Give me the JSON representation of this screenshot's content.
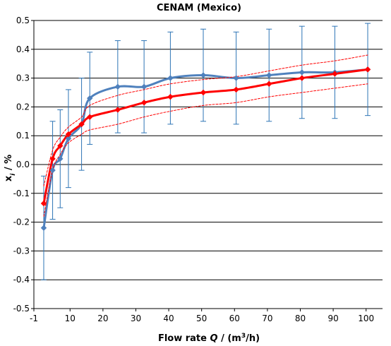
{
  "chart_data": {
    "type": "line",
    "title": "CENAM (Mexico)",
    "xlabel": {
      "prefix": "Flow rate ",
      "var": "Q",
      "suffix": " / (m",
      "sup": "3",
      "end": "/h)"
    },
    "ylabel": {
      "var": "x",
      "sub": "i",
      "suffix": " / %"
    },
    "xlim": [
      -1,
      105
    ],
    "ylim": [
      -0.5,
      0.5
    ],
    "x_ticks": [
      -1,
      10,
      20,
      30,
      40,
      50,
      60,
      70,
      80,
      90,
      100
    ],
    "y_ticks": [
      -0.5,
      -0.4,
      -0.3,
      -0.2,
      -0.1,
      0.0,
      0.1,
      0.2,
      0.3,
      0.4,
      0.5
    ],
    "x_tick_labels": [
      "-1",
      "10",
      "20",
      "30",
      "40",
      "50",
      "60",
      "70",
      "80",
      "90",
      "100"
    ],
    "y_tick_labels": [
      "-0.5",
      "-0.4",
      "-0.3",
      "-0.2",
      "-0.1",
      "0.0",
      "0.1",
      "0.2",
      "0.3",
      "0.4",
      "0.5"
    ],
    "grid": "horizontal",
    "series": [
      {
        "color": "#4f81bd",
        "marker": "diamond",
        "smooth": true,
        "x": [
          2,
          4.7,
          7,
          9.5,
          13.5,
          16,
          24.5,
          32.5,
          40.5,
          50.5,
          60.5,
          70.5,
          80.5,
          90.5,
          100.5
        ],
        "values": [
          -0.22,
          -0.02,
          0.02,
          0.09,
          0.14,
          0.23,
          0.27,
          0.27,
          0.3,
          0.31,
          0.3,
          0.31,
          0.32,
          0.32,
          0.33
        ],
        "error": [
          0.18,
          0.17,
          0.17,
          0.17,
          0.16,
          0.16,
          0.16,
          0.16,
          0.16,
          0.16,
          0.16,
          0.16,
          0.16,
          0.16,
          0.16
        ]
      },
      {
        "color": "#ff0000",
        "marker": "diamond",
        "smooth": true,
        "x": [
          2,
          4.7,
          7,
          9.5,
          13.5,
          16,
          24.5,
          32.5,
          40.5,
          50.5,
          60.5,
          70.5,
          80.5,
          90.5,
          100.5
        ],
        "values": [
          -0.135,
          0.02,
          0.065,
          0.105,
          0.14,
          0.165,
          0.19,
          0.215,
          0.235,
          0.25,
          0.26,
          0.28,
          0.3,
          0.315,
          0.33
        ]
      },
      {
        "color": "#ff0000",
        "dashed": true,
        "smooth": true,
        "x": [
          2,
          4.7,
          7,
          9.5,
          13.5,
          16,
          24.5,
          32.5,
          40.5,
          50.5,
          60.5,
          70.5,
          80.5,
          90.5,
          100.5
        ],
        "values": [
          -0.075,
          0.05,
          0.095,
          0.13,
          0.165,
          0.205,
          0.24,
          0.26,
          0.28,
          0.295,
          0.305,
          0.325,
          0.345,
          0.36,
          0.38
        ]
      },
      {
        "color": "#ff0000",
        "dashed": true,
        "smooth": true,
        "x": [
          2,
          4.7,
          7,
          9.5,
          13.5,
          16,
          24.5,
          32.5,
          40.5,
          50.5,
          60.5,
          70.5,
          80.5,
          90.5,
          100.5
        ],
        "values": [
          -0.18,
          -0.02,
          0.035,
          0.075,
          0.105,
          0.12,
          0.14,
          0.165,
          0.185,
          0.205,
          0.215,
          0.235,
          0.25,
          0.265,
          0.28
        ]
      }
    ]
  }
}
